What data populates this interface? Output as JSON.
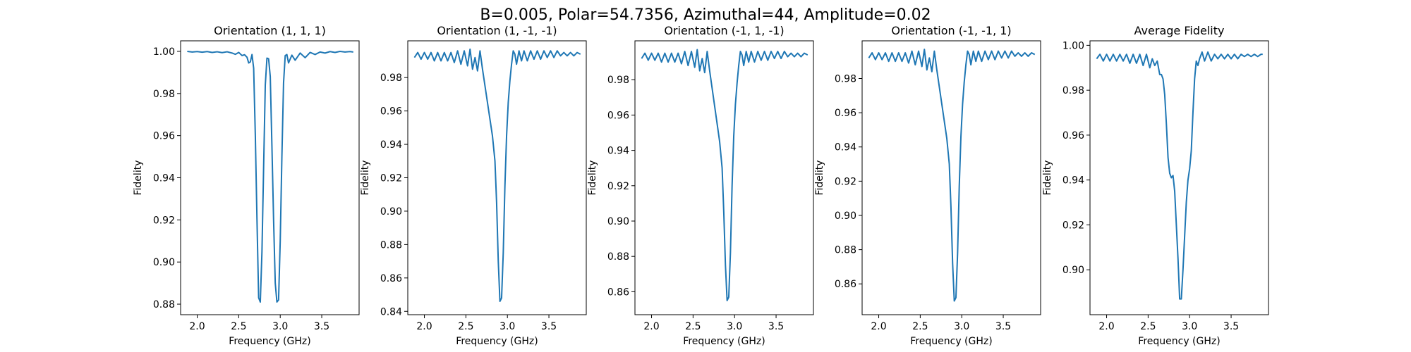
{
  "figure": {
    "suptitle": "B=0.005, Polar=54.7356, Azimuthal=44, Amplitude=0.02",
    "line_color": "#1f77b4"
  },
  "chart_data": [
    {
      "type": "line",
      "title": "Orientation (1, 1, 1)",
      "xlabel": "Frequency (GHz)",
      "ylabel": "Fidelity",
      "xlim": [
        1.8,
        3.95
      ],
      "ylim": [
        0.875,
        1.005
      ],
      "xticks": [
        "2.0",
        "2.5",
        "3.0",
        "3.5"
      ],
      "yticks": [
        "0.88",
        "0.90",
        "0.92",
        "0.94",
        "0.96",
        "0.98",
        "1.00"
      ],
      "grid": false,
      "series": [
        {
          "x": [
            1.88,
            1.94,
            2.0,
            2.06,
            2.12,
            2.18,
            2.24,
            2.3,
            2.36,
            2.42,
            2.46,
            2.5,
            2.54,
            2.57,
            2.6,
            2.62,
            2.64,
            2.66,
            2.68,
            2.7,
            2.72,
            2.74,
            2.76,
            2.78,
            2.8,
            2.82,
            2.84,
            2.86,
            2.88,
            2.9,
            2.92,
            2.94,
            2.96,
            2.98,
            3.0,
            3.02,
            3.04,
            3.06,
            3.08,
            3.1,
            3.14,
            3.18,
            3.24,
            3.3,
            3.36,
            3.42,
            3.48,
            3.54,
            3.6,
            3.66,
            3.72,
            3.78,
            3.84,
            3.88
          ],
          "y": [
            1.0,
            0.9997,
            0.9999,
            0.9996,
            0.9999,
            0.9995,
            0.9998,
            0.9994,
            0.9998,
            0.9992,
            0.9986,
            0.9995,
            0.998,
            0.9984,
            0.9972,
            0.9945,
            0.995,
            0.9985,
            0.992,
            0.96,
            0.92,
            0.883,
            0.881,
            0.905,
            0.945,
            0.984,
            0.9968,
            0.9965,
            0.988,
            0.955,
            0.92,
            0.89,
            0.881,
            0.882,
            0.91,
            0.95,
            0.985,
            0.998,
            0.9985,
            0.9945,
            0.9982,
            0.9958,
            0.9992,
            0.997,
            0.9995,
            0.9985,
            0.9997,
            0.9992,
            0.9999,
            0.9995,
            1.0,
            0.9997,
            0.9999,
            0.9997
          ]
        }
      ]
    },
    {
      "type": "line",
      "title": "Orientation (1, -1, -1)",
      "xlabel": "Frequency (GHz)",
      "ylabel": "Fidelity",
      "xlim": [
        1.8,
        3.95
      ],
      "ylim": [
        0.838,
        1.002
      ],
      "xticks": [
        "2.0",
        "2.5",
        "3.0",
        "3.5"
      ],
      "yticks": [
        "0.84",
        "0.86",
        "0.88",
        "0.90",
        "0.92",
        "0.94",
        "0.96",
        "0.98"
      ],
      "grid": false,
      "series": [
        {
          "x": [
            1.88,
            1.92,
            1.96,
            2.0,
            2.04,
            2.08,
            2.12,
            2.16,
            2.2,
            2.24,
            2.28,
            2.32,
            2.36,
            2.4,
            2.44,
            2.48,
            2.52,
            2.55,
            2.58,
            2.61,
            2.64,
            2.67,
            2.7,
            2.73,
            2.76,
            2.79,
            2.82,
            2.85,
            2.87,
            2.89,
            2.91,
            2.93,
            2.95,
            2.97,
            2.99,
            3.01,
            3.03,
            3.05,
            3.07,
            3.09,
            3.11,
            3.14,
            3.17,
            3.2,
            3.24,
            3.28,
            3.32,
            3.36,
            3.4,
            3.44,
            3.48,
            3.52,
            3.56,
            3.6,
            3.64,
            3.68,
            3.72,
            3.76,
            3.8,
            3.84,
            3.88
          ],
          "y": [
            0.992,
            0.995,
            0.991,
            0.995,
            0.991,
            0.995,
            0.99,
            0.995,
            0.99,
            0.995,
            0.99,
            0.995,
            0.989,
            0.996,
            0.988,
            0.996,
            0.987,
            0.997,
            0.985,
            0.992,
            0.984,
            0.996,
            0.985,
            0.975,
            0.965,
            0.955,
            0.945,
            0.93,
            0.905,
            0.87,
            0.846,
            0.848,
            0.875,
            0.915,
            0.945,
            0.965,
            0.978,
            0.988,
            0.996,
            0.994,
            0.988,
            0.996,
            0.99,
            0.996,
            0.99,
            0.996,
            0.991,
            0.996,
            0.991,
            0.996,
            0.992,
            0.996,
            0.992,
            0.996,
            0.993,
            0.995,
            0.993,
            0.995,
            0.993,
            0.995,
            0.994
          ]
        }
      ]
    },
    {
      "type": "line",
      "title": "Orientation (-1, 1, -1)",
      "xlabel": "Frequency (GHz)",
      "ylabel": "Fidelity",
      "xlim": [
        1.8,
        3.95
      ],
      "ylim": [
        0.847,
        1.002
      ],
      "xticks": [
        "2.0",
        "2.5",
        "3.0",
        "3.5"
      ],
      "yticks": [
        "0.86",
        "0.88",
        "0.90",
        "0.92",
        "0.94",
        "0.96",
        "0.98"
      ],
      "grid": false,
      "series": [
        {
          "x": [
            1.88,
            1.92,
            1.96,
            2.0,
            2.04,
            2.08,
            2.12,
            2.16,
            2.2,
            2.24,
            2.28,
            2.32,
            2.36,
            2.4,
            2.44,
            2.48,
            2.52,
            2.55,
            2.58,
            2.61,
            2.64,
            2.67,
            2.7,
            2.73,
            2.76,
            2.79,
            2.82,
            2.85,
            2.87,
            2.89,
            2.91,
            2.93,
            2.95,
            2.97,
            2.99,
            3.01,
            3.03,
            3.05,
            3.07,
            3.09,
            3.11,
            3.14,
            3.17,
            3.2,
            3.24,
            3.28,
            3.32,
            3.36,
            3.4,
            3.44,
            3.48,
            3.52,
            3.56,
            3.6,
            3.64,
            3.68,
            3.72,
            3.76,
            3.8,
            3.84,
            3.88
          ],
          "y": [
            0.992,
            0.995,
            0.991,
            0.995,
            0.991,
            0.995,
            0.99,
            0.995,
            0.99,
            0.995,
            0.99,
            0.995,
            0.989,
            0.996,
            0.988,
            0.996,
            0.987,
            0.997,
            0.985,
            0.992,
            0.984,
            0.996,
            0.985,
            0.975,
            0.965,
            0.955,
            0.945,
            0.93,
            0.905,
            0.875,
            0.855,
            0.857,
            0.882,
            0.92,
            0.948,
            0.966,
            0.978,
            0.988,
            0.996,
            0.994,
            0.988,
            0.996,
            0.99,
            0.996,
            0.99,
            0.996,
            0.991,
            0.996,
            0.991,
            0.996,
            0.992,
            0.996,
            0.992,
            0.996,
            0.993,
            0.995,
            0.993,
            0.995,
            0.993,
            0.995,
            0.994
          ]
        }
      ]
    },
    {
      "type": "line",
      "title": "Orientation (-1, -1, 1)",
      "xlabel": "Frequency (GHz)",
      "ylabel": "Fidelity",
      "xlim": [
        1.8,
        3.95
      ],
      "ylim": [
        0.842,
        1.002
      ],
      "xticks": [
        "2.0",
        "2.5",
        "3.0",
        "3.5"
      ],
      "yticks": [
        "0.86",
        "0.88",
        "0.90",
        "0.92",
        "0.94",
        "0.96",
        "0.98"
      ],
      "grid": false,
      "series": [
        {
          "x": [
            1.88,
            1.92,
            1.96,
            2.0,
            2.04,
            2.08,
            2.12,
            2.16,
            2.2,
            2.24,
            2.28,
            2.32,
            2.36,
            2.4,
            2.44,
            2.48,
            2.52,
            2.55,
            2.58,
            2.61,
            2.64,
            2.67,
            2.7,
            2.73,
            2.76,
            2.79,
            2.82,
            2.85,
            2.87,
            2.89,
            2.91,
            2.93,
            2.95,
            2.97,
            2.99,
            3.01,
            3.03,
            3.05,
            3.07,
            3.09,
            3.11,
            3.14,
            3.17,
            3.2,
            3.24,
            3.28,
            3.32,
            3.36,
            3.4,
            3.44,
            3.48,
            3.52,
            3.56,
            3.6,
            3.64,
            3.68,
            3.72,
            3.76,
            3.8,
            3.84,
            3.88
          ],
          "y": [
            0.992,
            0.995,
            0.991,
            0.995,
            0.991,
            0.995,
            0.99,
            0.995,
            0.99,
            0.995,
            0.99,
            0.995,
            0.989,
            0.996,
            0.988,
            0.996,
            0.987,
            0.997,
            0.985,
            0.992,
            0.984,
            0.996,
            0.985,
            0.975,
            0.965,
            0.955,
            0.945,
            0.93,
            0.905,
            0.872,
            0.85,
            0.852,
            0.878,
            0.917,
            0.946,
            0.965,
            0.978,
            0.988,
            0.996,
            0.994,
            0.988,
            0.996,
            0.99,
            0.996,
            0.99,
            0.996,
            0.991,
            0.996,
            0.991,
            0.996,
            0.992,
            0.996,
            0.992,
            0.996,
            0.993,
            0.995,
            0.993,
            0.995,
            0.993,
            0.995,
            0.994
          ]
        }
      ]
    },
    {
      "type": "line",
      "title": "Average Fidelity",
      "xlabel": "Frequency (GHz)",
      "ylabel": "Fidelity",
      "xlim": [
        1.8,
        3.95
      ],
      "ylim": [
        0.88,
        1.002
      ],
      "xticks": [
        "2.0",
        "2.5",
        "3.0",
        "3.5"
      ],
      "yticks": [
        "0.90",
        "0.92",
        "0.94",
        "0.96",
        "0.98",
        "1.00"
      ],
      "grid": false,
      "series": [
        {
          "x": [
            1.88,
            1.92,
            1.96,
            2.0,
            2.04,
            2.08,
            2.12,
            2.16,
            2.2,
            2.24,
            2.28,
            2.32,
            2.36,
            2.4,
            2.44,
            2.48,
            2.52,
            2.55,
            2.58,
            2.61,
            2.64,
            2.66,
            2.68,
            2.7,
            2.72,
            2.74,
            2.76,
            2.78,
            2.8,
            2.82,
            2.84,
            2.86,
            2.88,
            2.9,
            2.92,
            2.94,
            2.96,
            2.98,
            3.0,
            3.02,
            3.04,
            3.06,
            3.08,
            3.1,
            3.12,
            3.15,
            3.18,
            3.22,
            3.26,
            3.3,
            3.34,
            3.38,
            3.42,
            3.46,
            3.5,
            3.54,
            3.58,
            3.62,
            3.66,
            3.7,
            3.74,
            3.78,
            3.82,
            3.86,
            3.88
          ],
          "y": [
            0.994,
            0.996,
            0.993,
            0.996,
            0.993,
            0.996,
            0.993,
            0.996,
            0.993,
            0.996,
            0.992,
            0.996,
            0.992,
            0.996,
            0.991,
            0.996,
            0.99,
            0.994,
            0.991,
            0.993,
            0.987,
            0.987,
            0.985,
            0.978,
            0.965,
            0.95,
            0.943,
            0.941,
            0.942,
            0.935,
            0.92,
            0.905,
            0.887,
            0.887,
            0.9,
            0.915,
            0.93,
            0.94,
            0.945,
            0.953,
            0.97,
            0.985,
            0.993,
            0.991,
            0.994,
            0.997,
            0.993,
            0.997,
            0.993,
            0.996,
            0.994,
            0.996,
            0.994,
            0.996,
            0.994,
            0.996,
            0.994,
            0.996,
            0.995,
            0.996,
            0.995,
            0.996,
            0.995,
            0.996,
            0.996
          ]
        }
      ]
    }
  ]
}
